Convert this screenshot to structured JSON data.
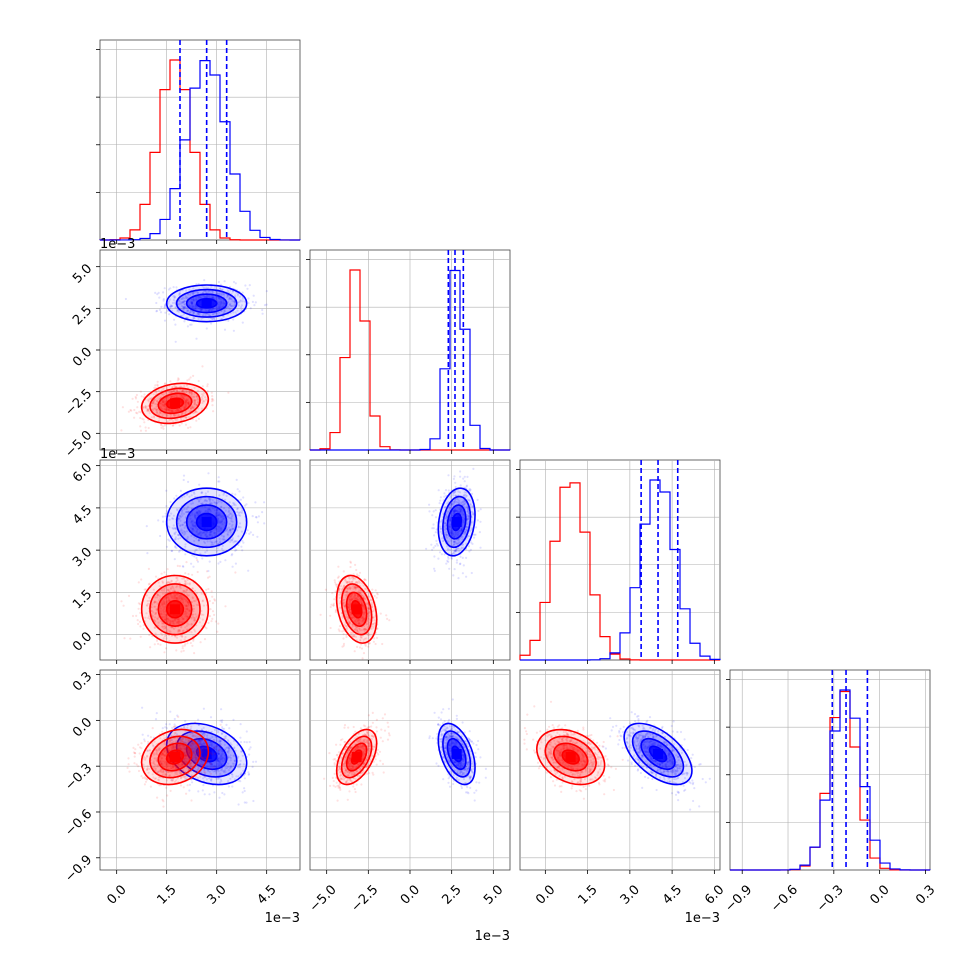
{
  "chart_data": {
    "type": "corner",
    "series": [
      {
        "name": "",
        "color": "#0000ff"
      },
      {
        "name": "",
        "color": "#ff0000"
      }
    ],
    "parameters": [
      {
        "range": [
          -0.0005,
          0.0055
        ],
        "ticks": [
          0.0,
          0.0015,
          0.003,
          0.0045
        ],
        "tick_labels": [
          "0.0",
          "1.5",
          "3.0",
          "4.5"
        ],
        "offset_label": "1e−3",
        "blue": {
          "mean": 0.0027,
          "sd": 0.0006
        },
        "red": {
          "mean": 0.00175,
          "sd": 0.0005
        },
        "quantiles": [
          0.0019,
          0.0027,
          0.0033
        ]
      },
      {
        "range": [
          -0.006,
          0.006
        ],
        "ticks": [
          -0.005,
          -0.0025,
          0.0,
          0.0025,
          0.005
        ],
        "tick_labels": [
          "−5.0",
          "−2.5",
          "0.0",
          "2.5",
          "5.0"
        ],
        "offset_label": "1e−3",
        "blue": {
          "mean": 0.0028,
          "sd": 0.00055
        },
        "red": {
          "mean": -0.0032,
          "sd": 0.0006
        },
        "quantiles": [
          0.0023,
          0.0027,
          0.0032
        ]
      },
      {
        "range": [
          -0.0009,
          0.0062
        ],
        "ticks": [
          0.0,
          0.0015,
          0.003,
          0.0045,
          0.006
        ],
        "tick_labels": [
          "0.0",
          "1.5",
          "3.0",
          "4.5",
          "6.0"
        ],
        "offset_label": "1e−3",
        "blue": {
          "mean": 0.004,
          "sd": 0.0006
        },
        "red": {
          "mean": 0.0009,
          "sd": 0.0006
        },
        "quantiles": [
          0.0034,
          0.004,
          0.0047
        ]
      },
      {
        "range": [
          -0.98,
          0.33
        ],
        "ticks": [
          -0.9,
          -0.6,
          -0.3,
          0.0,
          0.3
        ],
        "tick_labels": [
          "−0.9",
          "−0.6",
          "−0.3",
          "0.0",
          "0.3"
        ],
        "offset_label": "",
        "blue": {
          "mean": -0.22,
          "sd": 0.1
        },
        "red": {
          "mean": -0.24,
          "sd": 0.09
        },
        "quantiles": [
          -0.31,
          -0.22,
          -0.08
        ]
      }
    ],
    "pairs": [
      {
        "row": 1,
        "col": 0,
        "blue_corr": 0.0,
        "red_corr": 0.2
      },
      {
        "row": 2,
        "col": 0,
        "blue_corr": 0.0,
        "red_corr": 0.0
      },
      {
        "row": 2,
        "col": 1,
        "blue_corr": 0.2,
        "red_corr": -0.3
      },
      {
        "row": 3,
        "col": 0,
        "blue_corr": -0.3,
        "red_corr": 0.2
      },
      {
        "row": 3,
        "col": 1,
        "blue_corr": -0.45,
        "red_corr": 0.5
      },
      {
        "row": 3,
        "col": 2,
        "blue_corr": -0.55,
        "red_corr": -0.3
      }
    ],
    "grid": true,
    "histogram_bins": 20,
    "contour_levels_sigma": [
      0.5,
      1.0,
      1.5,
      2.0
    ]
  }
}
